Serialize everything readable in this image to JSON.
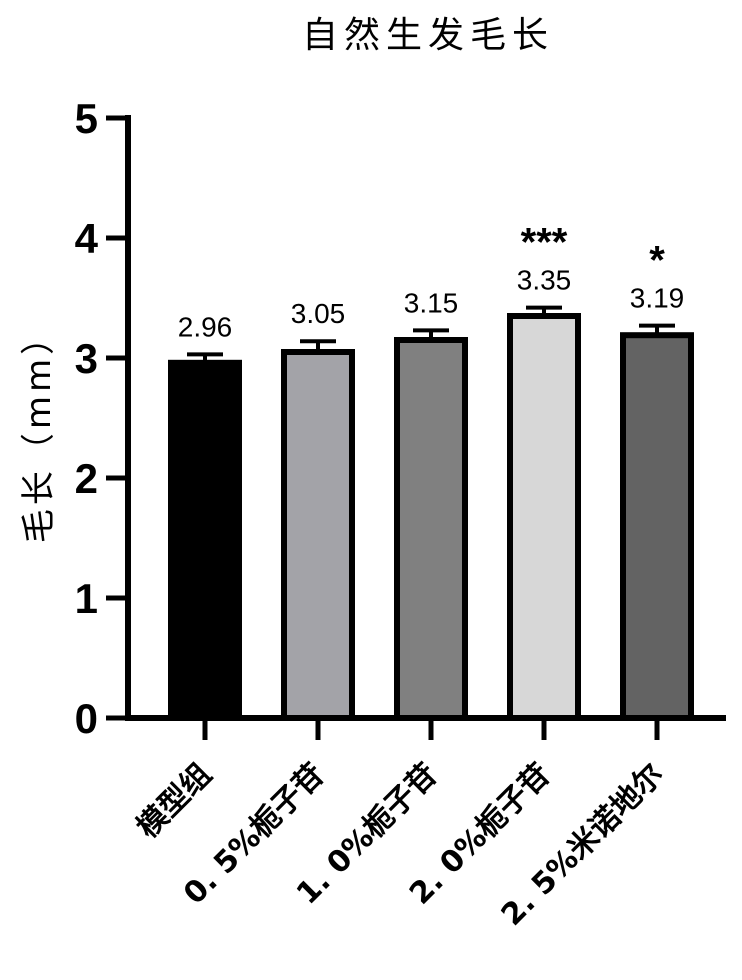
{
  "chart_data": {
    "type": "bar",
    "title": "自然生发毛长",
    "ylabel": "毛长（mm）",
    "xlabel": "",
    "ylim": [
      0,
      5
    ],
    "yticks": [
      0,
      1,
      2,
      3,
      4,
      5
    ],
    "categories": [
      "模型组",
      "0. 5%栀子苷",
      "1. 0%栀子苷",
      "2. 0%栀子苷",
      "2. 5%米诺地尔"
    ],
    "values": [
      2.96,
      3.05,
      3.15,
      3.35,
      3.19
    ],
    "error_upper": [
      0.07,
      0.09,
      0.08,
      0.07,
      0.08
    ],
    "value_labels": [
      "2.96",
      "3.05",
      "3.15",
      "3.35",
      "3.19"
    ],
    "significance": [
      "",
      "",
      "",
      "***",
      "*"
    ],
    "bar_colors": [
      "#000000",
      "#a3a3a8",
      "#808080",
      "#d7d7d7",
      "#636363"
    ],
    "grid": false,
    "legend": "none"
  }
}
